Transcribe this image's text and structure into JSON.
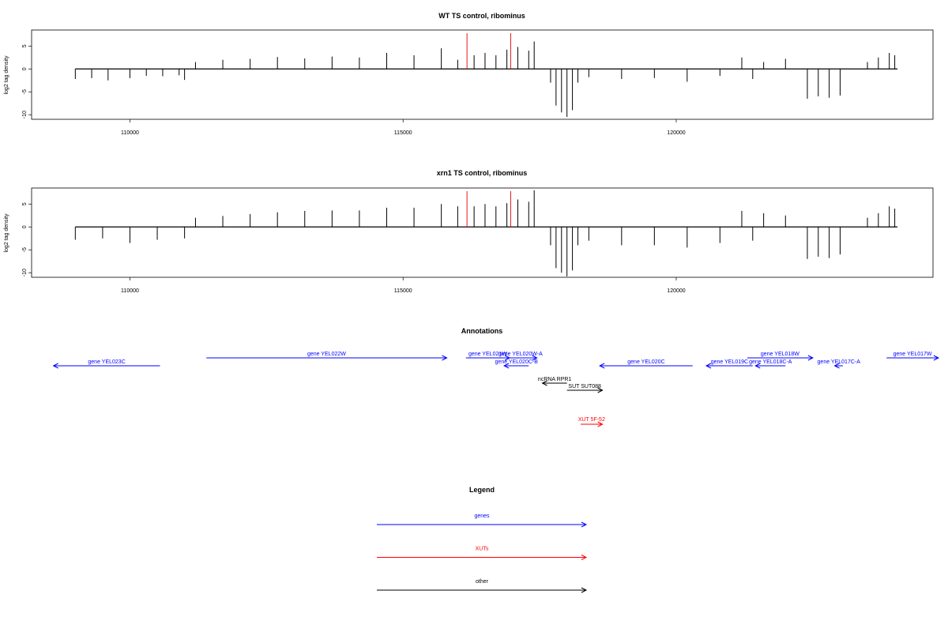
{
  "chart_data": [
    {
      "type": "bar",
      "title": "WT TS control, ribominus",
      "ylabel": "log2 tag density",
      "xlabel": "",
      "xlim": [
        108200,
        124700
      ],
      "ylim": [
        -11,
        8.5
      ],
      "x_ticks": [
        110000,
        115000,
        120000
      ],
      "x_tick_labels": [
        "110000",
        "115000",
        "120000"
      ],
      "y_ticks": [
        5,
        0,
        -5,
        -10
      ],
      "y_tick_labels": [
        "5",
        "0",
        "-5",
        "-10"
      ],
      "baseline_range": [
        109000,
        124050
      ],
      "markers": [
        116170,
        116970
      ],
      "marker_color": "#e41a1c",
      "bar_color": "#000000",
      "series": [
        {
          "x": [
            109000,
            109300,
            109600,
            110000,
            110300,
            110600,
            110900,
            111000
          ],
          "values": [
            -2.2,
            -2.0,
            -2.5,
            -2.0,
            -1.5,
            -1.6,
            -1.4,
            -2.4
          ]
        },
        {
          "x": [
            111200,
            111700,
            112200,
            112700,
            113200,
            113700,
            114200,
            114700,
            115200,
            115700,
            116000
          ],
          "values": [
            1.5,
            2.0,
            2.2,
            2.6,
            2.3,
            2.7,
            2.5,
            3.5,
            3.0,
            4.5,
            2.0
          ]
        },
        {
          "x": [
            116300,
            116500,
            116700,
            116900,
            117100,
            117300,
            117400
          ],
          "values": [
            3.0,
            3.5,
            3.0,
            4.2,
            4.8,
            4.0,
            6.0
          ]
        },
        {
          "x": [
            117700,
            117800,
            117900,
            118000,
            118100,
            118200
          ],
          "values": [
            -3.0,
            -8.0,
            -9.5,
            -10.5,
            -9.0,
            -3.0
          ]
        },
        {
          "x": [
            118400,
            119000,
            119600,
            120200,
            120800,
            121400
          ],
          "values": [
            -1.8,
            -2.2,
            -2.0,
            -2.8,
            -1.5,
            -2.2
          ]
        },
        {
          "x": [
            121200,
            121600,
            122000
          ],
          "values": [
            2.5,
            1.5,
            2.2
          ]
        },
        {
          "x": [
            122400,
            122600,
            122800,
            123000
          ],
          "values": [
            -6.5,
            -6.0,
            -6.3,
            -5.8
          ]
        },
        {
          "x": [
            123500,
            123700,
            123900,
            124000
          ],
          "values": [
            1.5,
            2.5,
            3.5,
            3.0
          ]
        }
      ]
    },
    {
      "type": "bar",
      "title": "xrn1 TS control, ribominus",
      "ylabel": "log2 tag density",
      "xlabel": "",
      "xlim": [
        108200,
        124700
      ],
      "ylim": [
        -11,
        8.5
      ],
      "x_ticks": [
        110000,
        115000,
        120000
      ],
      "x_tick_labels": [
        "110000",
        "115000",
        "120000"
      ],
      "y_ticks": [
        5,
        0,
        -5,
        -10
      ],
      "y_tick_labels": [
        "5",
        "0",
        "-5",
        "-10"
      ],
      "baseline_range": [
        109000,
        124050
      ],
      "markers": [
        116170,
        116970
      ],
      "marker_color": "#e41a1c",
      "bar_color": "#000000",
      "series": [
        {
          "x": [
            109000,
            109500,
            110000,
            110500,
            111000
          ],
          "values": [
            -2.8,
            -2.5,
            -3.5,
            -2.8,
            -2.5
          ]
        },
        {
          "x": [
            111200,
            111700,
            112200,
            112700,
            113200,
            113700,
            114200,
            114700,
            115200,
            115700,
            116000
          ],
          "values": [
            2.0,
            2.4,
            2.8,
            3.2,
            3.5,
            3.6,
            3.6,
            4.2,
            4.2,
            5.0,
            4.5
          ]
        },
        {
          "x": [
            116300,
            116500,
            116700,
            116900,
            117100,
            117300,
            117400
          ],
          "values": [
            4.5,
            5.0,
            4.5,
            5.2,
            6.0,
            5.5,
            8.0
          ]
        },
        {
          "x": [
            117700,
            117800,
            117900,
            118000,
            118100,
            118200
          ],
          "values": [
            -4.0,
            -9.0,
            -10.0,
            -10.8,
            -9.5,
            -4.0
          ]
        },
        {
          "x": [
            118400,
            119000,
            119600,
            120200,
            120800,
            121400
          ],
          "values": [
            -3.0,
            -4.0,
            -4.0,
            -4.5,
            -3.5,
            -3.0
          ]
        },
        {
          "x": [
            121200,
            121600,
            122000
          ],
          "values": [
            3.5,
            3.0,
            2.5
          ]
        },
        {
          "x": [
            122400,
            122600,
            122800,
            123000
          ],
          "values": [
            -7.0,
            -6.5,
            -6.8,
            -6.0
          ]
        },
        {
          "x": [
            123500,
            123700,
            123900,
            124000
          ],
          "values": [
            2.0,
            3.0,
            4.5,
            4.0
          ]
        }
      ]
    }
  ],
  "annotations": {
    "title": "Annotations",
    "xlim": [
      108200,
      124700
    ],
    "items": [
      {
        "label": "gene YEL023C",
        "start": 108600,
        "end": 110550,
        "strand": "-",
        "color": "#0000ff",
        "row": "low"
      },
      {
        "label": "gene YEL022W",
        "start": 111400,
        "end": 115800,
        "strand": "+",
        "color": "#0000ff",
        "row": "high"
      },
      {
        "label": "gene YEL021W",
        "start": 116150,
        "end": 116950,
        "strand": "+",
        "color": "#0000ff",
        "row": "high"
      },
      {
        "label": "gene YEL020W-A",
        "start": 116850,
        "end": 117450,
        "strand": "+",
        "color": "#0000ff",
        "row": "high"
      },
      {
        "label": "gene YEL020C-B",
        "start": 116850,
        "end": 117300,
        "strand": "-",
        "color": "#0000ff",
        "row": "low"
      },
      {
        "label": "ncRNA RPR1",
        "start": 117550,
        "end": 118000,
        "strand": "-",
        "color": "#000000",
        "row": "ncrna"
      },
      {
        "label": "SUT SUT088",
        "start": 118000,
        "end": 118650,
        "strand": "+",
        "color": "#000000",
        "row": "sut"
      },
      {
        "label": "XUT 5F-52",
        "start": 118250,
        "end": 118650,
        "strand": "+",
        "color": "#ff0000",
        "row": "xut"
      },
      {
        "label": "gene YEL020C",
        "start": 118600,
        "end": 120300,
        "strand": "-",
        "color": "#0000ff",
        "row": "low"
      },
      {
        "label": "gene YEL019C",
        "start": 120550,
        "end": 121400,
        "strand": "-",
        "color": "#0000ff",
        "row": "low"
      },
      {
        "label": "gene YEL018W",
        "start": 121300,
        "end": 122500,
        "strand": "+",
        "color": "#0000ff",
        "row": "high"
      },
      {
        "label": "gene YEL018C-A",
        "start": 121450,
        "end": 122000,
        "strand": "-",
        "color": "#0000ff",
        "row": "low"
      },
      {
        "label": "gene YEL017C-A",
        "start": 122900,
        "end": 123050,
        "strand": "-",
        "color": "#0000ff",
        "row": "low"
      },
      {
        "label": "gene YEL017W",
        "start": 123850,
        "end": 124800,
        "strand": "+",
        "color": "#0000ff",
        "row": "high"
      }
    ]
  },
  "legend": {
    "title": "Legend",
    "entries": [
      {
        "label": "genes",
        "color": "#0000ff"
      },
      {
        "label": "XUTs",
        "color": "#ff0000"
      },
      {
        "label": "other",
        "color": "#000000"
      }
    ]
  }
}
